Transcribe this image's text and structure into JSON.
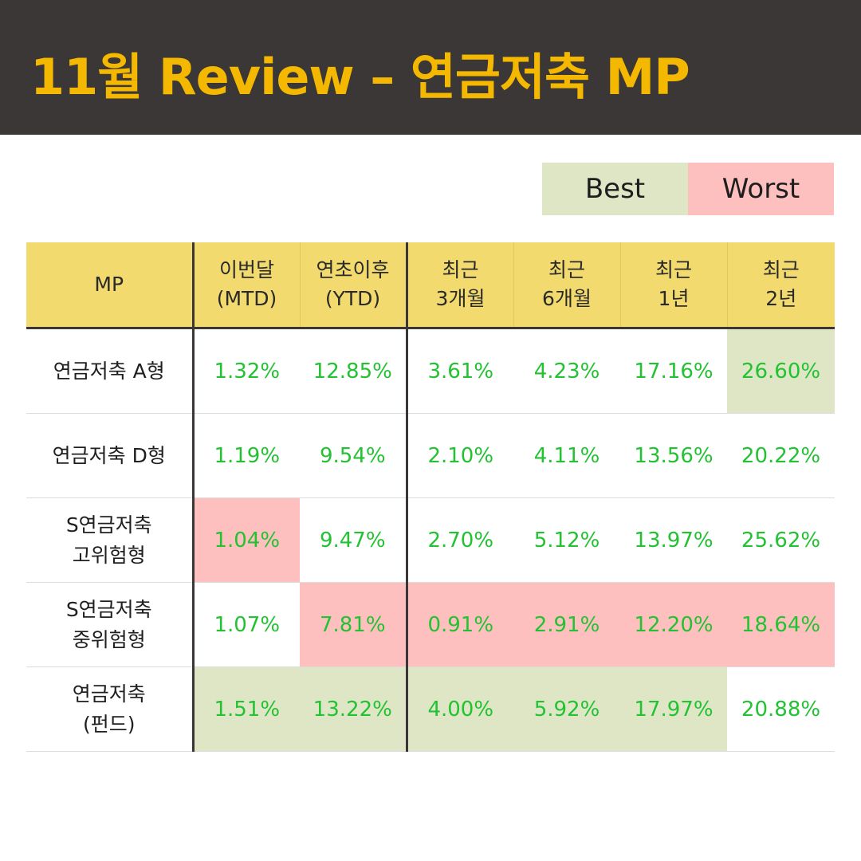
{
  "title": "11월 Review – 연금저축 MP",
  "legend": {
    "best": "Best",
    "worst": "Worst"
  },
  "colors": {
    "header_bg": "#3b3736",
    "title": "#f5b800",
    "table_header_bg": "#f2da6e",
    "best": "#dfe6c5",
    "worst": "#fdc0bf",
    "value_text": "#22c233"
  },
  "chart_data": {
    "type": "table",
    "columns": [
      {
        "line1": "MP",
        "line2": ""
      },
      {
        "line1": "이번달",
        "line2": "(MTD)"
      },
      {
        "line1": "연초이후",
        "line2": "(YTD)"
      },
      {
        "line1": "최근",
        "line2": "3개월"
      },
      {
        "line1": "최근",
        "line2": "6개월"
      },
      {
        "line1": "최근",
        "line2": "1년"
      },
      {
        "line1": "최근",
        "line2": "2년"
      }
    ],
    "rows": [
      {
        "line1": "연금저축 A형",
        "line2": "",
        "values": [
          "1.32%",
          "12.85%",
          "3.61%",
          "4.23%",
          "17.16%",
          "26.60%"
        ],
        "highlights": [
          "",
          "",
          "",
          "",
          "",
          "best"
        ]
      },
      {
        "line1": "연금저축 D형",
        "line2": "",
        "values": [
          "1.19%",
          "9.54%",
          "2.10%",
          "4.11%",
          "13.56%",
          "20.22%"
        ],
        "highlights": [
          "",
          "",
          "",
          "",
          "",
          ""
        ]
      },
      {
        "line1": "S연금저축",
        "line2": "고위험형",
        "values": [
          "1.04%",
          "9.47%",
          "2.70%",
          "5.12%",
          "13.97%",
          "25.62%"
        ],
        "highlights": [
          "worst",
          "",
          "",
          "",
          "",
          ""
        ]
      },
      {
        "line1": "S연금저축",
        "line2": "중위험형",
        "values": [
          "1.07%",
          "7.81%",
          "0.91%",
          "2.91%",
          "12.20%",
          "18.64%"
        ],
        "highlights": [
          "",
          "worst",
          "worst",
          "worst",
          "worst",
          "worst"
        ]
      },
      {
        "line1": "연금저축",
        "line2": "(펀드)",
        "values": [
          "1.51%",
          "13.22%",
          "4.00%",
          "5.92%",
          "17.97%",
          "20.88%"
        ],
        "highlights": [
          "best",
          "best",
          "best",
          "best",
          "best",
          ""
        ]
      }
    ]
  }
}
